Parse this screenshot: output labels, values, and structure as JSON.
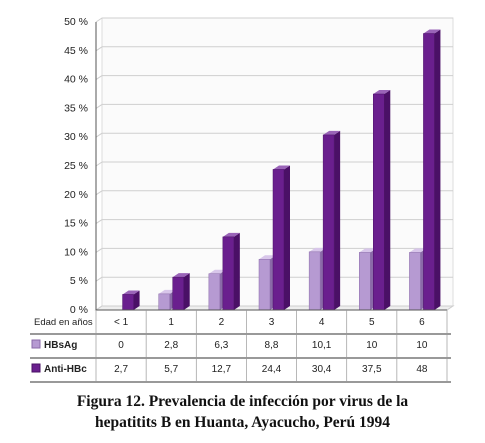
{
  "colors": {
    "background": "#ffffff",
    "plot_background": "#fbfbfb",
    "gridline": "#cfcfcf",
    "axis": "#555555",
    "hbsag_face": "#b69ad2",
    "hbsag_side": "#8a6aa8",
    "hbsag_top": "#d8c6ea",
    "antihbc_face": "#6a1f8e",
    "antihbc_side": "#4a1066",
    "antihbc_top": "#9a64b8",
    "text": "#222222"
  },
  "chart_data": {
    "type": "bar",
    "title": "",
    "xlabel": "Edad en años",
    "ylabel": "",
    "ylim": [
      0,
      50
    ],
    "y_ticks": [
      "0 %",
      "5 %",
      "10 %",
      "15 %",
      "20 %",
      "25 %",
      "30 %",
      "35 %",
      "40 %",
      "45 %",
      "50 %"
    ],
    "categories": [
      "< 1",
      "1",
      "2",
      "3",
      "4",
      "5",
      "6"
    ],
    "grid": true,
    "legend_placement": "table-below",
    "series": [
      {
        "name": "HBsAg",
        "values": [
          0,
          2.8,
          6.3,
          8.8,
          10.1,
          10,
          10
        ],
        "labels": [
          "0",
          "2,8",
          "6,3",
          "8,8",
          "10,1",
          "10",
          "10"
        ],
        "color_key": "hbsag"
      },
      {
        "name": "Anti-HBc",
        "values": [
          2.7,
          5.7,
          12.7,
          24.4,
          30.4,
          37.5,
          48
        ],
        "labels": [
          "2,7",
          "5,7",
          "12,7",
          "24,4",
          "30,4",
          "37,5",
          "48"
        ],
        "color_key": "antihbc"
      }
    ]
  },
  "caption": {
    "line1": "Figura 12.  Prevalencia de infección por virus de la",
    "line2": "hepatitits B en Huanta,  Ayacucho,  Perú 1994"
  }
}
